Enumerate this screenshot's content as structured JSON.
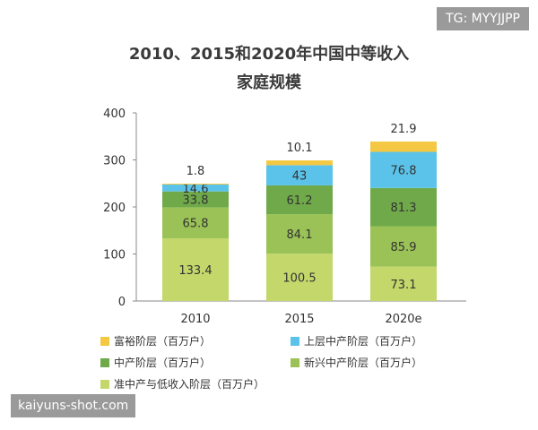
{
  "badge": "TG: MYYJJPP",
  "watermark": "kaiyuns-shot.com",
  "chart_data": {
    "type": "bar",
    "stacked": true,
    "title_line1": "2010、2015和2020年中国中等收入",
    "title_line2": "家庭规模",
    "categories": [
      "2010",
      "2015",
      "2020e"
    ],
    "ylim": [
      0,
      400
    ],
    "yticks": [
      0,
      100,
      200,
      300,
      400
    ],
    "grid": false,
    "series": [
      {
        "name": "准中产与低收入阶层（百万户）",
        "color": "#c3d76b",
        "values": [
          133.4,
          100.5,
          73.1
        ]
      },
      {
        "name": "新兴中产阶层（百万户）",
        "color": "#9ac256",
        "values": [
          65.8,
          84.1,
          85.9
        ]
      },
      {
        "name": "中产阶层（百万户）",
        "color": "#6fa94a",
        "values": [
          33.8,
          61.2,
          81.3
        ]
      },
      {
        "name": "上层中产阶层（百万户）",
        "color": "#5bc3ea",
        "values": [
          14.6,
          43,
          76.8
        ]
      },
      {
        "name": "富裕阶层（百万户）",
        "color": "#f4c842",
        "values": [
          1.8,
          10.1,
          21.9
        ]
      }
    ],
    "legend_position": "bottom"
  }
}
